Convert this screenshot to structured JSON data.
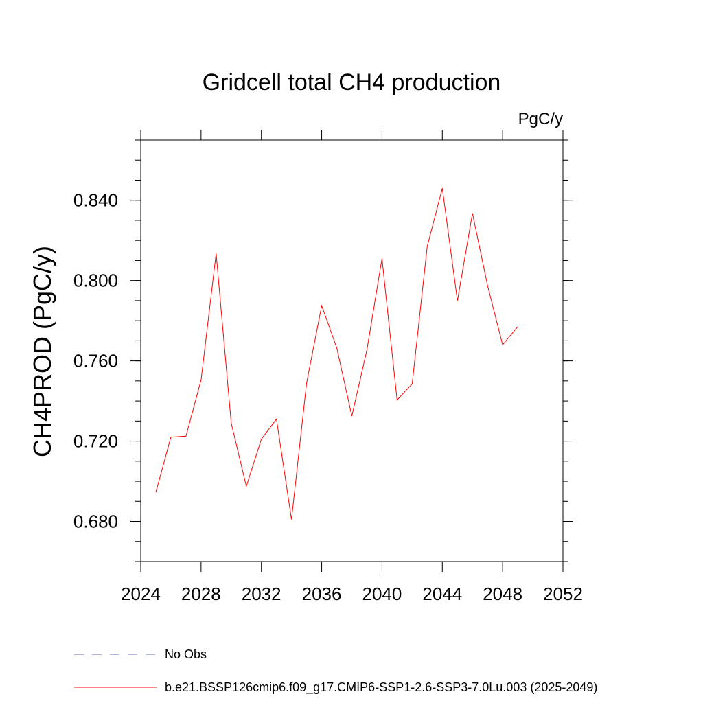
{
  "chart_data": {
    "type": "line",
    "title": "Gridcell total CH4 production",
    "units_label": "PgC/y",
    "ylabel": "CH4PROD  (PgC/y)",
    "xlabel": "",
    "xlim": [
      2024,
      2052
    ],
    "ylim": [
      0.66,
      0.87
    ],
    "x_ticks": [
      2024,
      2028,
      2032,
      2036,
      2040,
      2044,
      2048,
      2052
    ],
    "y_ticks": [
      0.68,
      0.72,
      0.76,
      0.8,
      0.84
    ],
    "x_tick_labels": [
      "2024",
      "2028",
      "2032",
      "2036",
      "2040",
      "2044",
      "2048",
      "2052"
    ],
    "y_tick_labels": [
      "0.680",
      "0.720",
      "0.760",
      "0.800",
      "0.840"
    ],
    "series": [
      {
        "name": "b.e21.BSSP126cmip6.f09_g17.CMIP6-SSP1-2.6-SSP3-7.0Lu.003 (2025-2049)",
        "color": "#ff0000",
        "x": [
          2025,
          2026,
          2027,
          2028,
          2029,
          2030,
          2031,
          2032,
          2033,
          2034,
          2035,
          2036,
          2037,
          2038,
          2039,
          2040,
          2041,
          2042,
          2043,
          2044,
          2045,
          2046,
          2047,
          2048,
          2049
        ],
        "values": [
          0.6945,
          0.722,
          0.7225,
          0.7505,
          0.8135,
          0.729,
          0.6975,
          0.721,
          0.731,
          0.681,
          0.749,
          0.7875,
          0.7665,
          0.7325,
          0.7655,
          0.811,
          0.7405,
          0.7485,
          0.817,
          0.846,
          0.79,
          0.8335,
          0.7975,
          0.768,
          0.777
        ]
      }
    ],
    "legend": [
      {
        "label": "No Obs",
        "style": "dashed",
        "color": "#6a6ab8"
      },
      {
        "label": "b.e21.BSSP126cmip6.f09_g17.CMIP6-SSP1-2.6-SSP3-7.0Lu.003 (2025-2049)",
        "style": "solid",
        "color": "#ff0000"
      }
    ]
  }
}
